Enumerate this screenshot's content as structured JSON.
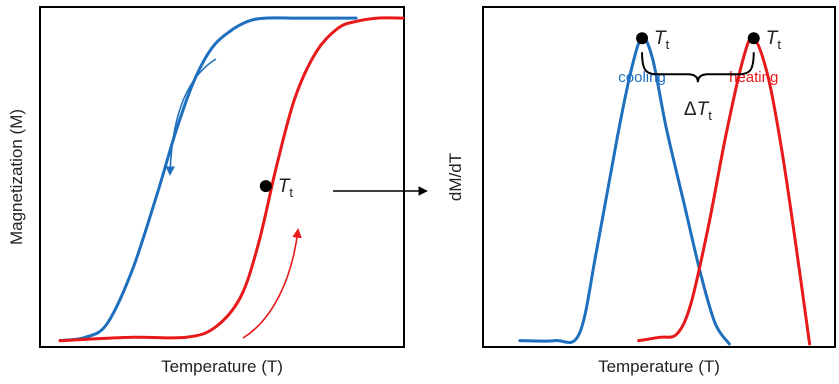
{
  "colors": {
    "cooling": "#1f6fbf",
    "heating": "#e8191a",
    "axis": "#000000"
  },
  "chart_data": [
    {
      "type": "line",
      "xlabel": "Temperature (T)",
      "ylabel": "Magnetization (M)",
      "series": [
        {
          "key": "cooling",
          "color": "#1f6fbf",
          "x": [
            0.05,
            0.12,
            0.18,
            0.25,
            0.32,
            0.37,
            0.42,
            0.47,
            0.52,
            0.57,
            0.62,
            0.72,
            0.87
          ],
          "y": [
            0.01,
            0.02,
            0.06,
            0.22,
            0.45,
            0.63,
            0.78,
            0.88,
            0.93,
            0.96,
            0.97,
            0.97,
            0.97
          ]
        },
        {
          "key": "heating",
          "color": "#e8191a",
          "x": [
            0.05,
            0.25,
            0.4,
            0.48,
            0.55,
            0.6,
            0.65,
            0.7,
            0.76,
            0.82,
            0.87,
            0.93,
            1.0
          ],
          "y": [
            0.01,
            0.02,
            0.02,
            0.05,
            0.14,
            0.3,
            0.53,
            0.73,
            0.87,
            0.94,
            0.96,
            0.97,
            0.97
          ]
        }
      ],
      "marker": {
        "text": "T",
        "sub": "t",
        "x": 0.62,
        "y": 0.47
      }
    },
    {
      "type": "line",
      "xlabel": "Temperature (T)",
      "ylabel": "dM/dT",
      "series": [
        {
          "key": "cooling",
          "name": "cooling",
          "color": "#1f6fbf",
          "x": [
            0.1,
            0.2,
            0.27,
            0.32,
            0.38,
            0.42,
            0.45,
            0.48,
            0.52,
            0.57,
            0.62,
            0.66,
            0.7
          ],
          "y": [
            0.01,
            0.01,
            0.03,
            0.28,
            0.62,
            0.82,
            0.91,
            0.85,
            0.64,
            0.42,
            0.2,
            0.06,
            0.0
          ]
        },
        {
          "key": "heating",
          "name": "heating",
          "color": "#e8191a",
          "x": [
            0.44,
            0.5,
            0.55,
            0.59,
            0.64,
            0.69,
            0.74,
            0.77,
            0.81,
            0.85,
            0.89,
            0.93
          ],
          "y": [
            0.01,
            0.02,
            0.03,
            0.12,
            0.35,
            0.62,
            0.85,
            0.91,
            0.8,
            0.58,
            0.3,
            0.0
          ]
        }
      ],
      "peaks": [
        {
          "text": "T",
          "sub": "t",
          "x": 0.45,
          "y": 0.91
        },
        {
          "text": "T",
          "sub": "t",
          "x": 0.77,
          "y": 0.91
        }
      ],
      "delta": {
        "prefix": "Δ",
        "text": "T",
        "sub": "t"
      }
    }
  ]
}
